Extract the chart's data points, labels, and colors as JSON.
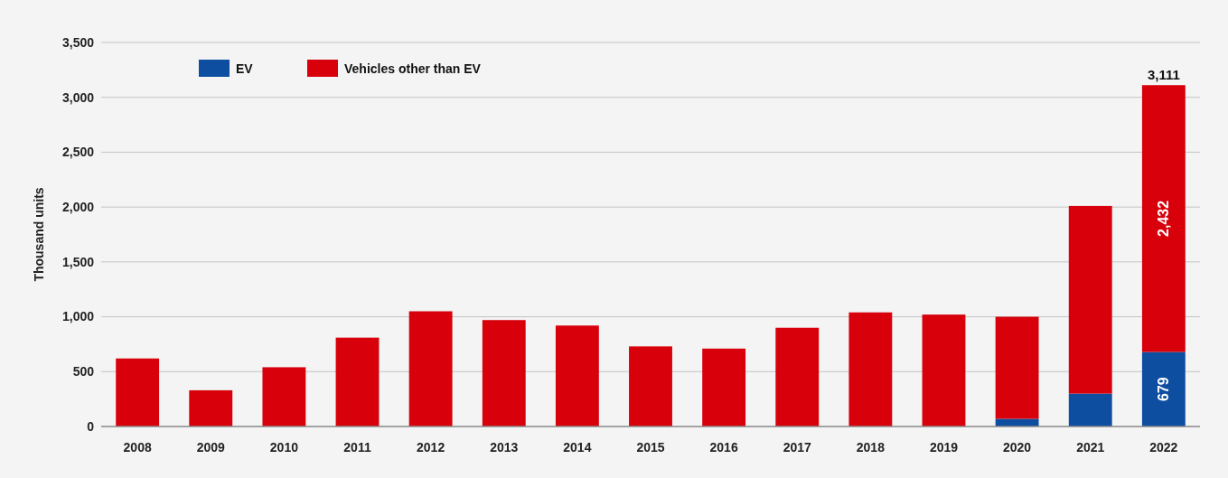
{
  "chart_data": {
    "type": "bar",
    "stacked": true,
    "ylabel": "Thousand units",
    "categories": [
      "2008",
      "2009",
      "2010",
      "2011",
      "2012",
      "2013",
      "2014",
      "2015",
      "2016",
      "2017",
      "2018",
      "2019",
      "2020",
      "2021",
      "2022"
    ],
    "series": [
      {
        "name": "EV",
        "color": "#0d4ea1",
        "values": [
          0,
          0,
          0,
          0,
          0,
          0,
          0,
          0,
          0,
          0,
          0,
          0,
          70,
          300,
          679
        ],
        "value_labels": [
          null,
          null,
          null,
          null,
          null,
          null,
          null,
          null,
          null,
          null,
          null,
          null,
          null,
          null,
          "679"
        ]
      },
      {
        "name": "Vehicles other than EV",
        "color": "#d7000b",
        "values": [
          620,
          330,
          540,
          810,
          1050,
          970,
          920,
          730,
          710,
          900,
          1040,
          1020,
          930,
          1710,
          2432
        ],
        "value_labels": [
          null,
          null,
          null,
          null,
          null,
          null,
          null,
          null,
          null,
          null,
          null,
          null,
          null,
          null,
          "2,432"
        ]
      }
    ],
    "totals": [
      null,
      null,
      null,
      null,
      null,
      null,
      null,
      null,
      null,
      null,
      null,
      null,
      null,
      null,
      "3,111"
    ],
    "ylim": [
      0,
      3500
    ],
    "yticks": [
      {
        "value": 0,
        "label": "0"
      },
      {
        "value": 500,
        "label": "500"
      },
      {
        "value": 1000,
        "label": "1,000"
      },
      {
        "value": 1500,
        "label": "1,500"
      },
      {
        "value": 2000,
        "label": "2,000"
      },
      {
        "value": 2500,
        "label": "2,500"
      },
      {
        "value": 3000,
        "label": "3,000"
      },
      {
        "value": 3500,
        "label": "3,500"
      }
    ],
    "grid": "y",
    "legend": "top left"
  }
}
